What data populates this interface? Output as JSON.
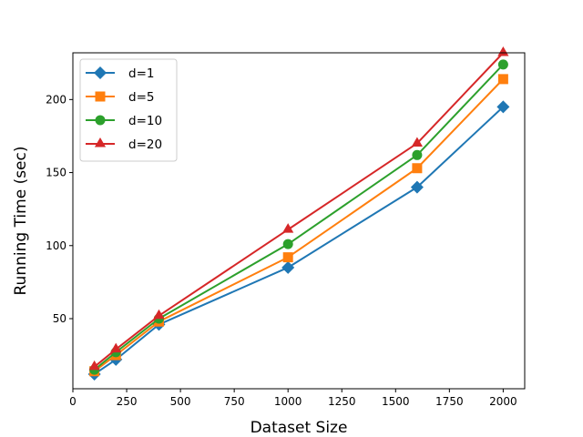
{
  "chart_data": {
    "type": "line",
    "title": "",
    "xlabel": "Dataset Size",
    "ylabel": "Running Time (sec)",
    "xlim": [
      0,
      2100
    ],
    "ylim": [
      2,
      232
    ],
    "xticks": [
      0,
      250,
      500,
      750,
      1000,
      1250,
      1500,
      1750,
      2000
    ],
    "yticks": [
      50,
      100,
      150,
      200
    ],
    "grid": false,
    "legend_position": "top-left",
    "x": [
      100,
      200,
      400,
      1000,
      1600,
      2000
    ],
    "series": [
      {
        "name": "d=1",
        "color": "#1f77b4",
        "marker": "diamond",
        "values": [
          12,
          22,
          46,
          85,
          140,
          195
        ]
      },
      {
        "name": "d=5",
        "color": "#ff7f0e",
        "marker": "square",
        "values": [
          14,
          25,
          48,
          92,
          153,
          214
        ]
      },
      {
        "name": "d=10",
        "color": "#2ca02c",
        "marker": "circle",
        "values": [
          15,
          27,
          50,
          101,
          162,
          224
        ]
      },
      {
        "name": "d=20",
        "color": "#d62728",
        "marker": "triangle",
        "values": [
          17,
          29,
          52,
          111,
          170,
          232
        ]
      }
    ]
  }
}
